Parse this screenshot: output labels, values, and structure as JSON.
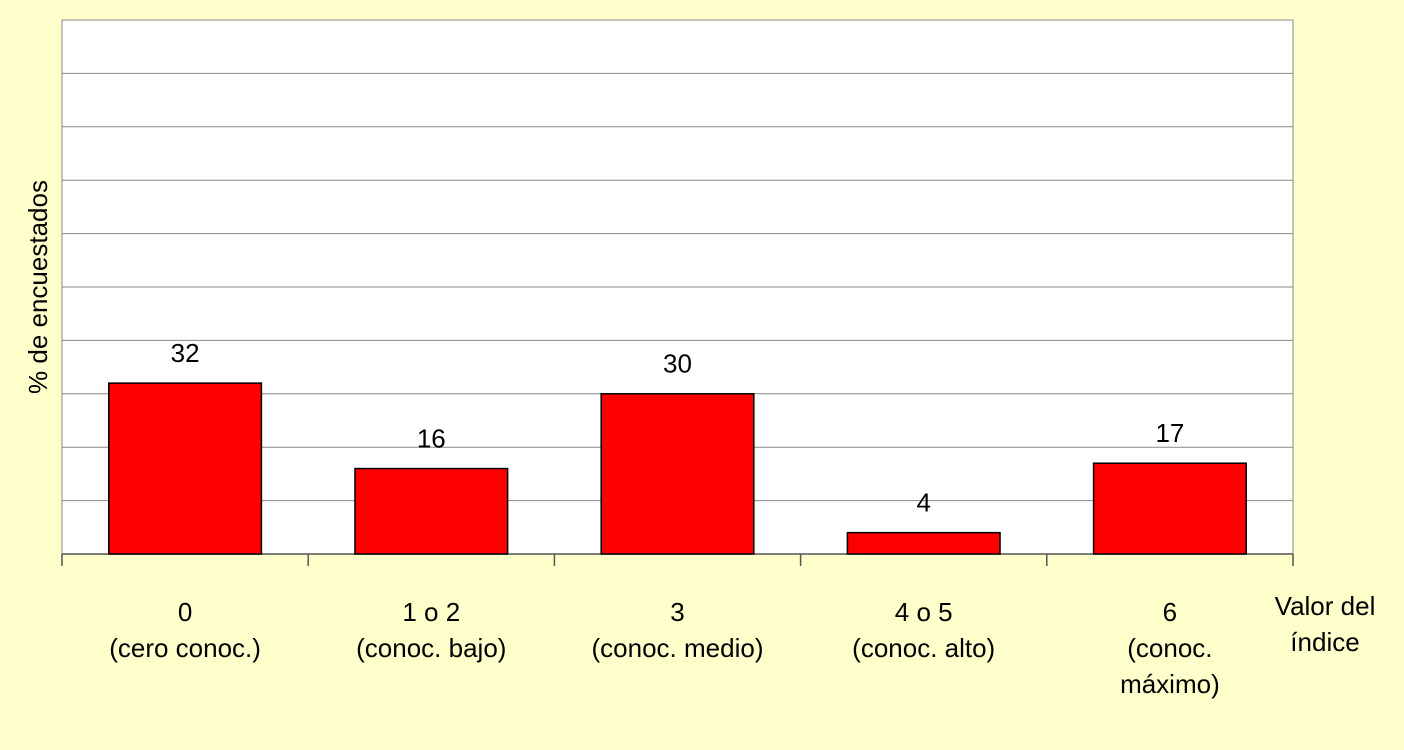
{
  "chart_data": {
    "type": "bar",
    "y_label": "% de encuestados",
    "x_label": "Valor del\níndice",
    "categories": [
      "0\n(cero conoc.)",
      "1 o 2\n(conoc. bajo)",
      "3\n(conoc. medio)",
      "4 o 5\n(conoc. alto)",
      "6\n(conoc.\nmáximo)"
    ],
    "values": [
      32,
      16,
      30,
      4,
      17
    ],
    "color": "#ff0000",
    "ylim": [
      0,
      100
    ],
    "yticks": [
      0,
      10,
      20,
      30,
      40,
      50,
      60,
      70,
      80,
      90,
      100
    ],
    "grid": true
  }
}
